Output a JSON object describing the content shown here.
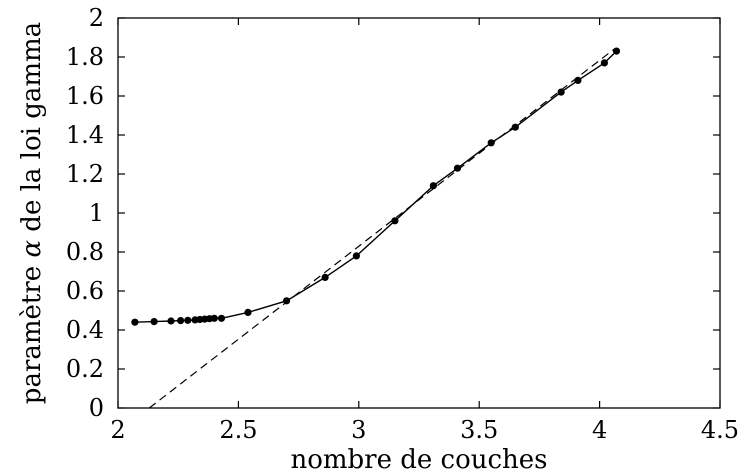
{
  "chart_data": {
    "type": "line",
    "xlabel": "nombre de couches",
    "ylabel_parts": [
      "paramètre ",
      "α",
      " de la loi gamma"
    ],
    "xlim": [
      2,
      4.5
    ],
    "ylim": [
      0,
      2
    ],
    "xticks": [
      "2",
      "2.5",
      "3",
      "3.5",
      "4",
      "4.5"
    ],
    "yticks": [
      "0",
      "0.2",
      "0.4",
      "0.6",
      "0.8",
      "1",
      "1.2",
      "1.4",
      "1.6",
      "1.8",
      "2"
    ],
    "grid": false,
    "series": [
      {
        "style": "solid-with-markers",
        "x": [
          2.07,
          2.15,
          2.22,
          2.26,
          2.29,
          2.32,
          2.34,
          2.36,
          2.38,
          2.4,
          2.43,
          2.54,
          2.7,
          2.86,
          2.99,
          3.15,
          3.31,
          3.41,
          3.55,
          3.65,
          3.84,
          3.91,
          4.02,
          4.07
        ],
        "y": [
          0.44,
          0.443,
          0.446,
          0.448,
          0.45,
          0.452,
          0.454,
          0.456,
          0.458,
          0.46,
          0.46,
          0.49,
          0.55,
          0.67,
          0.78,
          0.96,
          1.14,
          1.23,
          1.36,
          1.44,
          1.62,
          1.68,
          1.77,
          1.83
        ]
      },
      {
        "style": "dashed",
        "x": [
          2.13,
          4.06
        ],
        "y": [
          0.0,
          1.84
        ]
      }
    ]
  }
}
